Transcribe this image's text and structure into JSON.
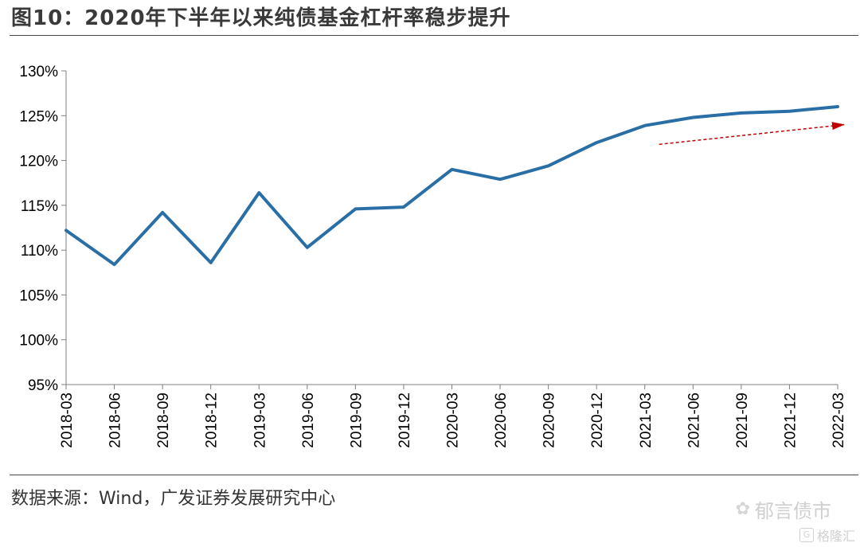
{
  "header": {
    "title": "图10：2020年下半年以来纯债基金杠杆率稳步提升"
  },
  "footer": {
    "source": "数据来源：Wind，广发证券发展研究中心",
    "watermark_main": "郁言债市",
    "watermark_sub": "格隆汇"
  },
  "colors": {
    "line": "#2a6ea6",
    "arrow": "#c00000"
  },
  "chart_data": {
    "type": "line",
    "categories": [
      "2018-03",
      "2018-06",
      "2018-09",
      "2018-12",
      "2019-03",
      "2019-06",
      "2019-09",
      "2019-12",
      "2020-03",
      "2020-06",
      "2020-09",
      "2020-12",
      "2021-03",
      "2021-06",
      "2021-09",
      "2021-12",
      "2022-03"
    ],
    "series": [
      {
        "values": [
          112.2,
          108.4,
          114.2,
          108.6,
          116.4,
          110.3,
          114.6,
          114.8,
          119.0,
          117.9,
          119.4,
          122.0,
          123.9,
          124.8,
          125.3,
          125.5,
          126.0
        ]
      }
    ],
    "y_ticks": [
      "95%",
      "100%",
      "105%",
      "110%",
      "115%",
      "120%",
      "125%",
      "130%"
    ],
    "ylim": [
      95,
      130
    ],
    "y_unit": "%",
    "grid": false,
    "annotation": {
      "type": "trend-arrow",
      "style": "dashed",
      "color": "#c00000",
      "from": {
        "x": "2021-03",
        "y": 121.8
      },
      "to": {
        "x": "2022-03",
        "y": 124.0
      }
    }
  }
}
